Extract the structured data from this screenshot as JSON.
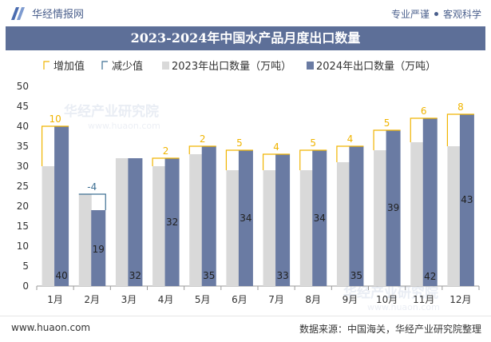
{
  "header": {
    "brand": "华经情报网",
    "slogan_left": "专业严谨",
    "slogan_right": "客观科学"
  },
  "footer": {
    "website": "www.huaon.com",
    "source": "数据来源：中国海关，华经产业研究院整理"
  },
  "watermark": "华经产业研究院",
  "watermark_url": "www.huaon.com",
  "colors": {
    "title_bg": "#5d6f98",
    "bar_2023": "#d9d9d9",
    "bar_2024": "#6a7ba3",
    "increase": "#f0b400",
    "decrease": "#3d6f93"
  },
  "chart_data": {
    "type": "bar",
    "title": "2023-2024年中国水产品月度出口数量",
    "categories": [
      "1月",
      "2月",
      "3月",
      "4月",
      "5月",
      "6月",
      "7月",
      "8月",
      "9月",
      "10月",
      "11月",
      "12月"
    ],
    "series": [
      {
        "name": "2023年出口数量（万吨）",
        "values": [
          30,
          23,
          32,
          30,
          33,
          29,
          29,
          29,
          31,
          34,
          36,
          35
        ]
      },
      {
        "name": "2024年出口数量（万吨）",
        "values": [
          40,
          19,
          32,
          32,
          35,
          34,
          33,
          34,
          35,
          39,
          42,
          43
        ]
      }
    ],
    "changes": [
      10,
      -4,
      0,
      2,
      2,
      5,
      4,
      5,
      4,
      5,
      6,
      8
    ],
    "legend": [
      "增加值",
      "减少值",
      "2023年出口数量（万吨）",
      "2024年出口数量（万吨）"
    ],
    "y_ticks": [
      "0",
      "5",
      "10",
      "15",
      "20",
      "25",
      "30",
      "35",
      "40",
      "45",
      "50"
    ],
    "ylim": [
      0,
      50
    ],
    "legend_position": "top",
    "grid": false
  }
}
